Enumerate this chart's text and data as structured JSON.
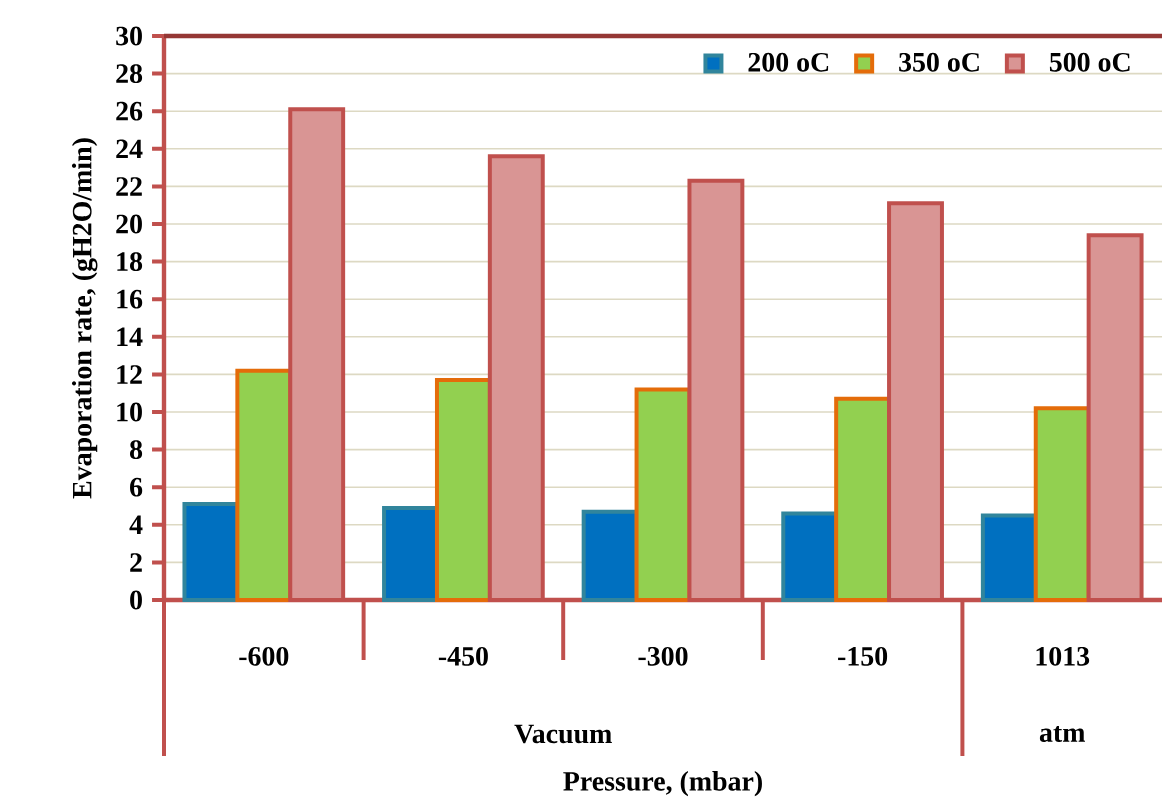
{
  "chart_data": {
    "type": "bar",
    "xlabel": "Pressure, (mbar)",
    "ylabel": "Evaporation rate, (gH2O/min)",
    "categories": [
      "-600",
      "-450",
      "-300",
      "-150",
      "1013"
    ],
    "series": [
      {
        "name": "200 oC",
        "color": "#0070c0",
        "values": [
          5.1,
          4.9,
          4.7,
          4.6,
          4.5
        ]
      },
      {
        "name": "350 oC",
        "color": "#92d050",
        "values": [
          12.2,
          11.7,
          11.2,
          10.7,
          10.2
        ]
      },
      {
        "name": "500 oC",
        "color": "#d99594",
        "values": [
          26.1,
          23.6,
          22.3,
          21.1,
          19.4
        ]
      }
    ],
    "ylim": [
      0,
      30
    ],
    "yticks": [
      0,
      2,
      4,
      6,
      8,
      10,
      12,
      14,
      16,
      18,
      20,
      22,
      24,
      26,
      28,
      30
    ],
    "grid": "y",
    "legend": "top right",
    "annotations": [
      "Vacuum",
      "atm"
    ]
  }
}
